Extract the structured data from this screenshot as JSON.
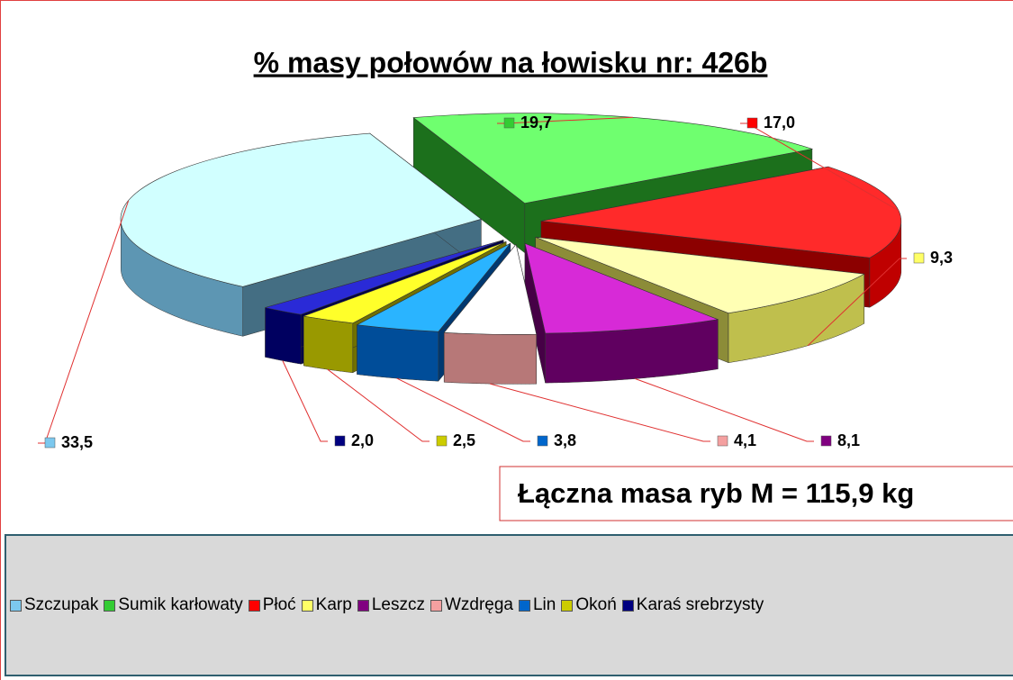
{
  "chart_data": {
    "type": "pie",
    "title": "% masy połowów na łowisku nr:  426b",
    "categories": [
      "Szczupak",
      "Sumik karłowaty",
      "Płoć",
      "Karp",
      "Leszcz",
      "Wzdręga",
      "Lin",
      "Okoń",
      "Karaś srebrzysty"
    ],
    "values": [
      33.5,
      19.7,
      17.0,
      9.3,
      8.1,
      4.1,
      3.8,
      2.5,
      2.0
    ],
    "value_labels": [
      "33,5",
      "19,7",
      "17,0",
      "9,3",
      "8,1",
      "4,1",
      "3,8",
      "2,5",
      "2,0"
    ],
    "colors": [
      "#7cc8ee",
      "#33cc33",
      "#ff0000",
      "#ffff66",
      "#800080",
      "#f4a0a0",
      "#0066cc",
      "#cccc00",
      "#000080"
    ],
    "annotation": "Łączna masa ryb M = 115,9 kg"
  }
}
